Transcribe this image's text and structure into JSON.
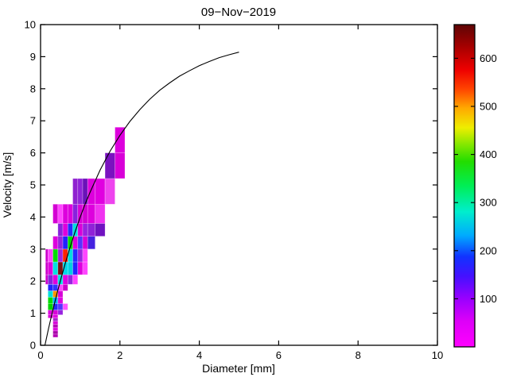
{
  "chart_data": {
    "type": "heatmap",
    "title": "09−Nov−2019",
    "xlabel": "Diameter [mm]",
    "ylabel": "Velocity [m/s]",
    "xlim": [
      0,
      10
    ],
    "ylim": [
      0,
      10
    ],
    "xticks": [
      0,
      2,
      4,
      6,
      8,
      10
    ],
    "yticks": [
      0,
      1,
      2,
      3,
      4,
      5,
      6,
      7,
      8,
      9,
      10
    ],
    "grid": false,
    "background": "#ffffff",
    "curve": {
      "name": "terminal velocity curve",
      "color": "#000000",
      "points": [
        [
          0.11,
          0
        ],
        [
          0.2,
          0.52
        ],
        [
          0.3,
          1.05
        ],
        [
          0.4,
          1.55
        ],
        [
          0.5,
          2.02
        ],
        [
          0.625,
          2.57
        ],
        [
          0.75,
          3.08
        ],
        [
          0.875,
          3.56
        ],
        [
          1.0,
          4.0
        ],
        [
          1.125,
          4.41
        ],
        [
          1.25,
          4.78
        ],
        [
          1.5,
          5.46
        ],
        [
          1.75,
          6.05
        ],
        [
          2.0,
          6.55
        ],
        [
          2.25,
          6.98
        ],
        [
          2.5,
          7.35
        ],
        [
          2.75,
          7.67
        ],
        [
          3.0,
          7.95
        ],
        [
          3.25,
          8.18
        ],
        [
          3.5,
          8.39
        ],
        [
          3.75,
          8.56
        ],
        [
          4.0,
          8.72
        ],
        [
          4.25,
          8.85
        ],
        [
          4.5,
          8.97
        ],
        [
          4.75,
          9.06
        ],
        [
          5.0,
          9.14
        ]
      ]
    },
    "cell_format": [
      "d_min_mm",
      "d_max_mm",
      "v_min_ms",
      "v_max_ms",
      "count",
      "color"
    ],
    "cells": [
      [
        0.312,
        0.437,
        0.25,
        0.35,
        10,
        "#b400b4"
      ],
      [
        0.312,
        0.437,
        0.35,
        0.45,
        10,
        "#a800a8"
      ],
      [
        0.312,
        0.437,
        0.45,
        0.55,
        30,
        "#e000e0"
      ],
      [
        0.312,
        0.437,
        0.55,
        0.65,
        12,
        "#b400b4"
      ],
      [
        0.312,
        0.437,
        0.65,
        0.75,
        28,
        "#d800d8"
      ],
      [
        0.312,
        0.437,
        0.75,
        0.85,
        70,
        "#aa22cc"
      ],
      [
        0.187,
        0.312,
        0.85,
        0.95,
        30,
        "#d800d8"
      ],
      [
        0.312,
        0.437,
        0.85,
        0.95,
        35,
        "#e000e0"
      ],
      [
        0.187,
        0.312,
        0.95,
        1.1,
        32,
        "#e000e0"
      ],
      [
        0.312,
        0.437,
        0.95,
        1.1,
        30,
        "#d800d8"
      ],
      [
        0.437,
        0.562,
        0.95,
        1.1,
        95,
        "#9922e0"
      ],
      [
        0.187,
        0.312,
        1.1,
        1.3,
        350,
        "#00d400"
      ],
      [
        0.312,
        0.437,
        1.1,
        1.3,
        185,
        "#2828ff"
      ],
      [
        0.437,
        0.562,
        1.1,
        1.3,
        140,
        "#5533ff"
      ],
      [
        0.562,
        0.687,
        1.1,
        1.3,
        55,
        "#ff55ff"
      ],
      [
        0.187,
        0.312,
        1.3,
        1.5,
        360,
        "#00e000"
      ],
      [
        0.312,
        0.437,
        1.3,
        1.5,
        220,
        "#00aaff"
      ],
      [
        0.437,
        0.562,
        1.3,
        1.5,
        35,
        "#e000e0"
      ],
      [
        0.187,
        0.312,
        1.5,
        1.7,
        250,
        "#00dede"
      ],
      [
        0.312,
        0.437,
        1.5,
        1.7,
        480,
        "#ff9100"
      ],
      [
        0.437,
        0.562,
        1.5,
        1.7,
        30,
        "#d800d8"
      ],
      [
        0.187,
        0.312,
        1.7,
        1.9,
        180,
        "#2222ff"
      ],
      [
        0.312,
        0.437,
        1.7,
        1.9,
        175,
        "#3333ff"
      ],
      [
        0.437,
        0.562,
        1.7,
        1.9,
        55,
        "#ff44ff"
      ],
      [
        0.562,
        0.687,
        1.7,
        1.9,
        25,
        "#cc00cc"
      ],
      [
        0.125,
        0.187,
        1.9,
        2.2,
        25,
        "#cc00cc"
      ],
      [
        0.187,
        0.312,
        1.9,
        2.2,
        100,
        "#8822dd"
      ],
      [
        0.312,
        0.437,
        1.9,
        2.2,
        30,
        "#dd00dd"
      ],
      [
        0.437,
        0.562,
        1.9,
        2.2,
        250,
        "#00e0e0"
      ],
      [
        0.562,
        0.687,
        1.9,
        2.2,
        35,
        "#e000e0"
      ],
      [
        0.687,
        0.812,
        1.9,
        2.2,
        95,
        "#9922e0"
      ],
      [
        0.812,
        0.937,
        1.9,
        2.2,
        50,
        "#ff44ff"
      ],
      [
        0.125,
        0.187,
        2.2,
        2.6,
        25,
        "#cc00cc"
      ],
      [
        0.187,
        0.312,
        2.2,
        2.6,
        30,
        "#dd00dd"
      ],
      [
        0.312,
        0.437,
        2.2,
        2.6,
        255,
        "#00e0e0"
      ],
      [
        0.437,
        0.562,
        2.2,
        2.6,
        655,
        "#7a1212"
      ],
      [
        0.562,
        0.687,
        2.2,
        2.6,
        245,
        "#00d8e8"
      ],
      [
        0.687,
        0.812,
        2.2,
        2.6,
        240,
        "#00d0e0"
      ],
      [
        0.812,
        0.937,
        2.2,
        2.6,
        185,
        "#2222ff"
      ],
      [
        0.937,
        1.062,
        2.2,
        2.6,
        30,
        "#dd00dd"
      ],
      [
        1.062,
        1.187,
        2.2,
        2.6,
        50,
        "#ff44ff"
      ],
      [
        0.125,
        0.187,
        2.6,
        3.0,
        22,
        "#cc00cc"
      ],
      [
        0.187,
        0.312,
        2.6,
        3.0,
        50,
        "#ff44ff"
      ],
      [
        0.312,
        0.437,
        2.6,
        3.0,
        370,
        "#00e000"
      ],
      [
        0.437,
        0.562,
        2.6,
        3.0,
        95,
        "#a022e0"
      ],
      [
        0.562,
        0.687,
        2.6,
        3.0,
        580,
        "#ff2200"
      ],
      [
        0.687,
        0.812,
        2.6,
        3.0,
        250,
        "#00dede"
      ],
      [
        0.812,
        0.937,
        2.6,
        3.0,
        190,
        "#2828ff"
      ],
      [
        0.937,
        1.062,
        2.6,
        3.0,
        95,
        "#9922e0"
      ],
      [
        1.062,
        1.187,
        2.6,
        3.0,
        48,
        "#ff44ff"
      ],
      [
        0.312,
        0.437,
        3.0,
        3.4,
        30,
        "#dd00dd"
      ],
      [
        0.437,
        0.562,
        3.0,
        3.4,
        95,
        "#9922e0"
      ],
      [
        0.562,
        0.687,
        3.0,
        3.4,
        180,
        "#2222ff"
      ],
      [
        0.687,
        0.812,
        3.0,
        3.4,
        360,
        "#00dd00"
      ],
      [
        0.812,
        0.937,
        3.0,
        3.4,
        32,
        "#e000e0"
      ],
      [
        0.937,
        1.062,
        3.0,
        3.4,
        140,
        "#5533ff"
      ],
      [
        1.062,
        1.187,
        3.0,
        3.4,
        28,
        "#d800d8"
      ],
      [
        1.187,
        1.375,
        3.0,
        3.4,
        130,
        "#4422e0"
      ],
      [
        0.437,
        0.562,
        3.4,
        3.8,
        100,
        "#8822dd"
      ],
      [
        0.562,
        0.687,
        3.4,
        3.8,
        30,
        "#dd00dd"
      ],
      [
        0.687,
        0.812,
        3.4,
        3.8,
        180,
        "#2828ff"
      ],
      [
        0.812,
        0.937,
        3.4,
        3.8,
        250,
        "#00dede"
      ],
      [
        0.937,
        1.062,
        3.4,
        3.8,
        28,
        "#d800d8"
      ],
      [
        1.062,
        1.187,
        3.4,
        3.8,
        95,
        "#9922e0"
      ],
      [
        1.187,
        1.375,
        3.4,
        3.8,
        90,
        "#9022d8"
      ],
      [
        1.375,
        1.625,
        3.4,
        3.8,
        110,
        "#7012c0"
      ],
      [
        0.312,
        0.437,
        3.8,
        4.4,
        25,
        "#d400d4"
      ],
      [
        0.437,
        0.562,
        3.8,
        4.4,
        48,
        "#ff44ff"
      ],
      [
        0.562,
        0.687,
        3.8,
        4.4,
        28,
        "#dd00dd"
      ],
      [
        0.687,
        0.812,
        3.8,
        4.4,
        30,
        "#dd00dd"
      ],
      [
        0.812,
        0.937,
        3.8,
        4.4,
        95,
        "#8822dd"
      ],
      [
        0.937,
        1.062,
        3.8,
        4.4,
        28,
        "#d800d8"
      ],
      [
        1.062,
        1.187,
        3.8,
        4.4,
        26,
        "#d400d4"
      ],
      [
        1.187,
        1.375,
        3.8,
        4.4,
        30,
        "#dd00dd"
      ],
      [
        1.375,
        1.625,
        3.8,
        4.4,
        50,
        "#f033f0"
      ],
      [
        0.812,
        0.937,
        4.4,
        5.2,
        90,
        "#9022d0"
      ],
      [
        0.937,
        1.062,
        4.4,
        5.2,
        92,
        "#9022d8"
      ],
      [
        1.062,
        1.187,
        4.4,
        5.2,
        110,
        "#6a12b8"
      ],
      [
        1.187,
        1.375,
        4.4,
        5.2,
        30,
        "#dd00dd"
      ],
      [
        1.375,
        1.625,
        4.4,
        5.2,
        32,
        "#e000e0"
      ],
      [
        1.625,
        1.875,
        4.4,
        5.2,
        48,
        "#ee44ee"
      ],
      [
        1.625,
        1.875,
        5.2,
        6.0,
        105,
        "#7a12c0"
      ],
      [
        1.875,
        2.125,
        5.2,
        6.0,
        28,
        "#d800d8"
      ],
      [
        1.875,
        2.125,
        6.0,
        6.8,
        30,
        "#dd00dd"
      ]
    ],
    "colorbar": {
      "position": "right",
      "min": 0,
      "max": 670,
      "ticks": [
        100,
        200,
        300,
        400,
        500,
        600
      ],
      "gradient": [
        {
          "offset": 0.0,
          "color": "#ff00ff"
        },
        {
          "offset": 0.08,
          "color": "#dd00f8"
        },
        {
          "offset": 0.15,
          "color": "#9900ff"
        },
        {
          "offset": 0.22,
          "color": "#4411ff"
        },
        {
          "offset": 0.28,
          "color": "#1133ff"
        },
        {
          "offset": 0.345,
          "color": "#00aaff"
        },
        {
          "offset": 0.42,
          "color": "#00eecc"
        },
        {
          "offset": 0.5,
          "color": "#00ee55"
        },
        {
          "offset": 0.575,
          "color": "#22dd00"
        },
        {
          "offset": 0.63,
          "color": "#88e800"
        },
        {
          "offset": 0.68,
          "color": "#eeee00"
        },
        {
          "offset": 0.74,
          "color": "#ffaa00"
        },
        {
          "offset": 0.8,
          "color": "#ff4400"
        },
        {
          "offset": 0.86,
          "color": "#ee0000"
        },
        {
          "offset": 0.93,
          "color": "#a80000"
        },
        {
          "offset": 1.0,
          "color": "#5e0505"
        }
      ]
    }
  }
}
